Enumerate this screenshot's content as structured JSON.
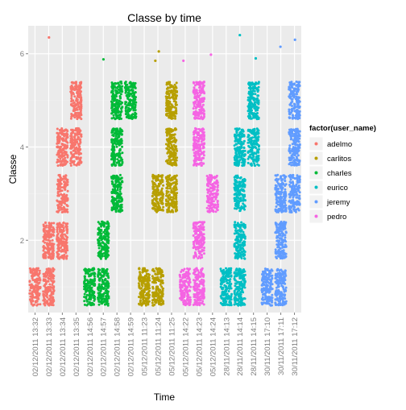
{
  "chart_data": {
    "type": "scatter",
    "title": "Classe by time",
    "xlabel": "Time",
    "ylabel": "Classe",
    "categories": [
      "02/12/2011 13:32",
      "02/12/2011 13:33",
      "02/12/2011 13:34",
      "02/12/2011 13:35",
      "02/12/2011 14:56",
      "02/12/2011 14:57",
      "02/12/2011 14:58",
      "02/12/2011 14:59",
      "05/12/2011 11:23",
      "05/12/2011 11:24",
      "05/12/2011 11:25",
      "05/12/2011 14:22",
      "05/12/2011 14:23",
      "05/12/2011 14:24",
      "28/11/2011 14:13",
      "28/11/2011 14:14",
      "28/11/2011 14:15",
      "30/11/2011 17:10",
      "30/11/2011 17:11",
      "30/11/2011 17:12"
    ],
    "ylim": [
      0.45,
      6.6
    ],
    "y_ticks": [
      2,
      4,
      6
    ],
    "grid": true,
    "legend": {
      "title": "factor(user_name)",
      "position": "right",
      "entries": [
        "adelmo",
        "carlitos",
        "charles",
        "eurico",
        "jeremy",
        "pedro"
      ]
    },
    "series": [
      {
        "name": "adelmo",
        "color": "#F8766D",
        "clusters": [
          {
            "x": "02/12/2011 13:32",
            "y": 1
          },
          {
            "x": "02/12/2011 13:33",
            "y": 1
          },
          {
            "x": "02/12/2011 13:33",
            "y": 2
          },
          {
            "x": "02/12/2011 13:34",
            "y": 2
          },
          {
            "x": "02/12/2011 13:34",
            "y": 3
          },
          {
            "x": "02/12/2011 13:34",
            "y": 4
          },
          {
            "x": "02/12/2011 13:35",
            "y": 4
          },
          {
            "x": "02/12/2011 13:35",
            "y": 5
          }
        ],
        "outliers": [
          {
            "x": "02/12/2011 13:33",
            "y": 6.35
          }
        ]
      },
      {
        "name": "charles",
        "color": "#00BA38",
        "clusters": [
          {
            "x": "02/12/2011 14:56",
            "y": 1
          },
          {
            "x": "02/12/2011 14:57",
            "y": 1
          },
          {
            "x": "02/12/2011 14:57",
            "y": 2
          },
          {
            "x": "02/12/2011 14:58",
            "y": 3
          },
          {
            "x": "02/12/2011 14:58",
            "y": 4
          },
          {
            "x": "02/12/2011 14:58",
            "y": 5
          },
          {
            "x": "02/12/2011 14:59",
            "y": 5
          }
        ],
        "outliers": [
          {
            "x": "02/12/2011 14:57",
            "y": 5.88
          }
        ]
      },
      {
        "name": "carlitos",
        "color": "#B79F00",
        "clusters": [
          {
            "x": "05/12/2011 11:23",
            "y": 1
          },
          {
            "x": "05/12/2011 11:24",
            "y": 1
          },
          {
            "x": "05/12/2011 11:24",
            "y": 3
          },
          {
            "x": "05/12/2011 11:25",
            "y": 3
          },
          {
            "x": "05/12/2011 11:25",
            "y": 4
          },
          {
            "x": "05/12/2011 11:25",
            "y": 5
          }
        ],
        "outliers": [
          {
            "x": "05/12/2011 11:24",
            "y": 6.05
          },
          {
            "x": "05/12/2011 11:24",
            "y": 5.85
          }
        ]
      },
      {
        "name": "pedro",
        "color": "#F564E3",
        "clusters": [
          {
            "x": "05/12/2011 14:22",
            "y": 1
          },
          {
            "x": "05/12/2011 14:23",
            "y": 1
          },
          {
            "x": "05/12/2011 14:23",
            "y": 2
          },
          {
            "x": "05/12/2011 14:23",
            "y": 4
          },
          {
            "x": "05/12/2011 14:23",
            "y": 5
          },
          {
            "x": "05/12/2011 14:24",
            "y": 3
          }
        ],
        "outliers": [
          {
            "x": "05/12/2011 14:24",
            "y": 5.98
          },
          {
            "x": "05/12/2011 14:22",
            "y": 5.85
          }
        ]
      },
      {
        "name": "eurico",
        "color": "#00BFC4",
        "clusters": [
          {
            "x": "28/11/2011 14:13",
            "y": 1
          },
          {
            "x": "28/11/2011 14:14",
            "y": 1
          },
          {
            "x": "28/11/2011 14:14",
            "y": 2
          },
          {
            "x": "28/11/2011 14:14",
            "y": 3
          },
          {
            "x": "28/11/2011 14:14",
            "y": 4
          },
          {
            "x": "28/11/2011 14:15",
            "y": 4
          },
          {
            "x": "28/11/2011 14:15",
            "y": 5
          }
        ],
        "outliers": [
          {
            "x": "28/11/2011 14:14",
            "y": 6.4
          },
          {
            "x": "28/11/2011 14:15",
            "y": 5.9
          }
        ]
      },
      {
        "name": "jeremy",
        "color": "#619CFF",
        "clusters": [
          {
            "x": "30/11/2011 17:10",
            "y": 1
          },
          {
            "x": "30/11/2011 17:11",
            "y": 1
          },
          {
            "x": "30/11/2011 17:11",
            "y": 2
          },
          {
            "x": "30/11/2011 17:11",
            "y": 3
          },
          {
            "x": "30/11/2011 17:12",
            "y": 3
          },
          {
            "x": "30/11/2011 17:12",
            "y": 4
          },
          {
            "x": "30/11/2011 17:12",
            "y": 5
          }
        ],
        "outliers": [
          {
            "x": "30/11/2011 17:11",
            "y": 6.15
          },
          {
            "x": "30/11/2011 17:12",
            "y": 6.3
          }
        ]
      }
    ]
  }
}
